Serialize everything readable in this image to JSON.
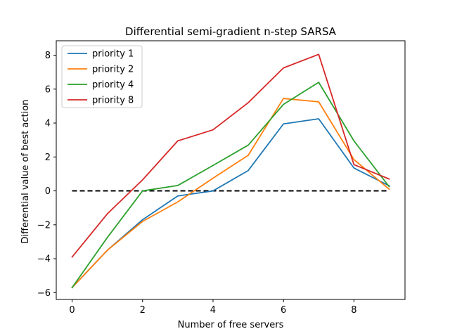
{
  "chart_data": {
    "type": "line",
    "title": "Differential semi-gradient n-step SARSA",
    "xlabel": "Number of free servers",
    "ylabel": "Differential value of best action",
    "x": [
      0,
      1,
      2,
      3,
      4,
      5,
      6,
      7,
      8,
      9
    ],
    "xlim": [
      -0.45,
      9.45
    ],
    "ylim": [
      -6.4,
      8.85
    ],
    "xticks": [
      0,
      2,
      4,
      6,
      8
    ],
    "yticks": [
      -6,
      -4,
      -2,
      0,
      2,
      4,
      6,
      8
    ],
    "grid": false,
    "legend_position": "top-left",
    "reference_line": {
      "y": 0,
      "style": "dashed",
      "color": "#000000"
    },
    "series": [
      {
        "name": "priority 1",
        "color": "#1f77b4",
        "values": [
          -5.7,
          -3.5,
          -1.7,
          -0.3,
          0.0,
          1.2,
          3.95,
          4.25,
          1.35,
          0.3
        ]
      },
      {
        "name": "priority 2",
        "color": "#ff7f0e",
        "values": [
          -5.7,
          -3.5,
          -1.8,
          -0.65,
          0.75,
          2.1,
          5.45,
          5.25,
          1.85,
          0.1
        ]
      },
      {
        "name": "priority 4",
        "color": "#2ca02c",
        "values": [
          -5.7,
          -2.75,
          0.0,
          0.32,
          1.5,
          2.7,
          5.1,
          6.4,
          2.95,
          0.25
        ]
      },
      {
        "name": "priority 8",
        "color": "#d62728",
        "values": [
          -3.9,
          -1.35,
          0.65,
          2.95,
          3.6,
          5.2,
          7.25,
          8.05,
          1.55,
          0.7
        ]
      }
    ]
  }
}
